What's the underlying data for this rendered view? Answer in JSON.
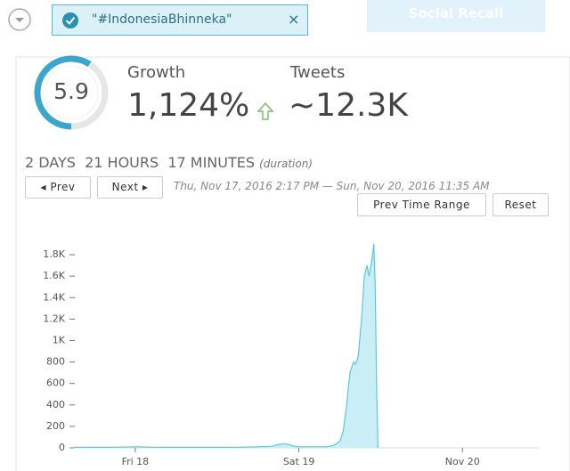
{
  "tag": {
    "label": "\"#IndonesiaBhinneka\""
  },
  "recall_button": "Social Recall",
  "stats": {
    "score": 5.9,
    "growth_label": "Growth",
    "growth_value": "1,124%",
    "tweets_label": "Tweets",
    "tweets_value": "~12.3K"
  },
  "duration": {
    "text": "2 DAYS  21 HOURS  17 MINUTES",
    "note": "(duration)"
  },
  "nav": {
    "prev": "◂ Prev",
    "next": "Next ▸",
    "range": "Thu, Nov 17, 2016 2:17 PM — Sun, Nov 20, 2016 11:35 AM",
    "prev_range": "Prev Time Range",
    "reset": "Reset"
  },
  "chart_data": {
    "type": "area",
    "color": "#5bc8dc",
    "fill": "#c9eef5",
    "x": [
      -9,
      -6,
      -3,
      0,
      3,
      6,
      9,
      12,
      15,
      18,
      20,
      21,
      22,
      23,
      24,
      26,
      28,
      29,
      30,
      30.5,
      31,
      31.5,
      32,
      32.3,
      32.7,
      33.2,
      33.6,
      34,
      34.3,
      34.7,
      35,
      35.2,
      35.4,
      35.6
    ],
    "values": [
      5,
      5,
      5,
      10,
      5,
      5,
      5,
      5,
      5,
      10,
      15,
      30,
      40,
      20,
      10,
      10,
      10,
      20,
      60,
      150,
      400,
      700,
      800,
      780,
      850,
      1200,
      1600,
      1700,
      1600,
      1750,
      1900,
      1500,
      600,
      0
    ],
    "xlim": [
      -9,
      59.2
    ],
    "xticks": [
      {
        "value": 0,
        "label": "Fri 18"
      },
      {
        "value": 24,
        "label": "Sat 19"
      },
      {
        "value": 48,
        "label": "Nov 20"
      }
    ],
    "ylim": [
      0,
      1950
    ],
    "yticks": [
      0,
      200,
      400,
      600,
      800,
      {
        "value": 1000,
        "label": "1K"
      },
      {
        "value": 1200,
        "label": "1.2K"
      },
      {
        "value": 1400,
        "label": "1.4K"
      },
      {
        "value": 1600,
        "label": "1.6K"
      },
      {
        "value": 1800,
        "label": "1.8K"
      }
    ]
  }
}
